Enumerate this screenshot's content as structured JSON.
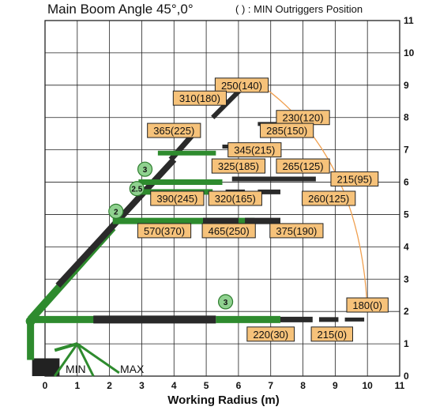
{
  "title": "Main Boom Angle 45°,0°",
  "note": "( ) : MIN Outriggers Position",
  "xlabel": "Working Radius (m)",
  "x_ticks": [
    "0",
    "1",
    "2",
    "3",
    "4",
    "5",
    "6",
    "7",
    "8",
    "9",
    "10",
    "11"
  ],
  "y_ticks": [
    "0",
    "1",
    "2",
    "3",
    "4",
    "5",
    "6",
    "7",
    "8",
    "9",
    "10",
    "11"
  ],
  "stabilizer_labels": {
    "min": "MIN",
    "max": "MAX"
  },
  "section_badges": [
    "2",
    "2.5",
    "3",
    "3"
  ],
  "colors": {
    "boom_green": "#2e8b2e",
    "boom_dark": "#2a2a2a",
    "label_fill": "#f6c27a",
    "envelope": "#f0a050",
    "badge_fill": "#8fd18f"
  },
  "chart_data": {
    "type": "diagram",
    "xlim": [
      0,
      11
    ],
    "ylim": [
      0,
      11
    ],
    "grid": true,
    "load_labels": [
      {
        "text": "250(140)",
        "x": 6.1,
        "y": 9.0
      },
      {
        "text": "310(180)",
        "x": 4.8,
        "y": 8.6
      },
      {
        "text": "230(120)",
        "x": 8.0,
        "y": 8.0
      },
      {
        "text": "365(225)",
        "x": 4.0,
        "y": 7.6
      },
      {
        "text": "285(150)",
        "x": 7.5,
        "y": 7.6
      },
      {
        "text": "345(215)",
        "x": 6.5,
        "y": 7.0
      },
      {
        "text": "325(185)",
        "x": 6.0,
        "y": 6.5
      },
      {
        "text": "265(125)",
        "x": 8.0,
        "y": 6.5
      },
      {
        "text": "215(95)",
        "x": 9.6,
        "y": 6.1
      },
      {
        "text": "390(245)",
        "x": 4.1,
        "y": 5.5
      },
      {
        "text": "320(165)",
        "x": 5.9,
        "y": 5.5
      },
      {
        "text": "260(125)",
        "x": 8.8,
        "y": 5.5
      },
      {
        "text": "570(370)",
        "x": 3.7,
        "y": 4.5
      },
      {
        "text": "465(250)",
        "x": 5.7,
        "y": 4.5
      },
      {
        "text": "375(190)",
        "x": 7.8,
        "y": 4.5
      },
      {
        "text": "180(0)",
        "x": 10.0,
        "y": 2.2
      },
      {
        "text": "220(30)",
        "x": 7.0,
        "y": 1.3
      },
      {
        "text": "215(0)",
        "x": 8.9,
        "y": 1.3
      }
    ]
  }
}
